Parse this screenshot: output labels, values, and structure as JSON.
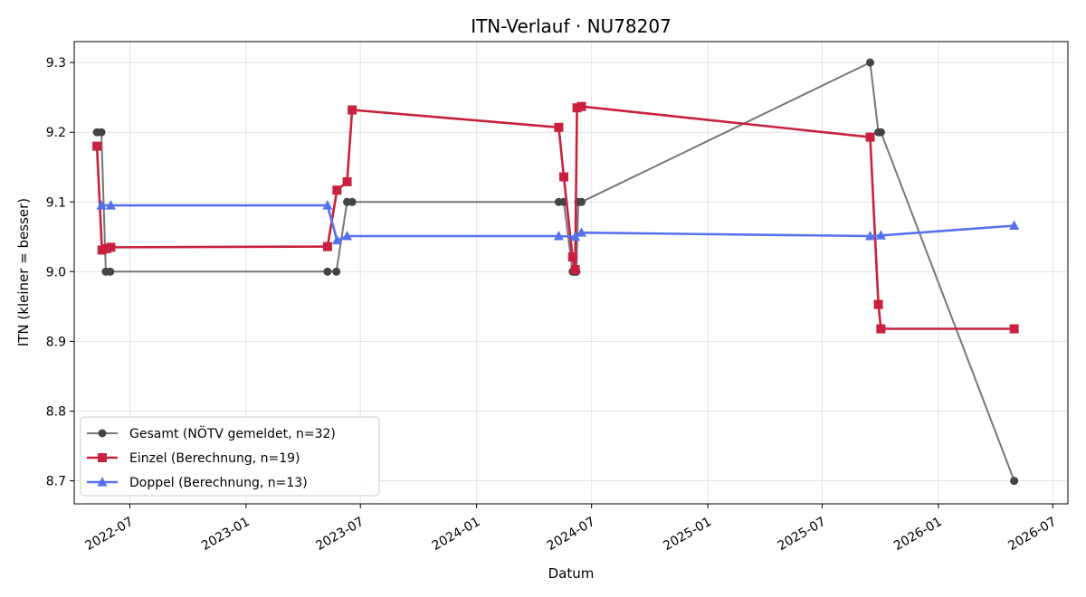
{
  "chart_data": {
    "type": "line",
    "title": "ITN-Verlauf · NU78207",
    "xlabel": "Datum",
    "ylabel": "ITN  (kleiner = besser)",
    "x_ticks": [
      "2022-07",
      "2023-01",
      "2023-07",
      "2024-01",
      "2024-07",
      "2025-01",
      "2025-07",
      "2026-01",
      "2026-07"
    ],
    "y_ticks": [
      "8.7",
      "8.8",
      "8.9",
      "9.0",
      "9.1",
      "9.2",
      "9.3"
    ],
    "xlim": [
      "2022-04-04",
      "2026-07-25"
    ],
    "ylim": [
      8.667,
      9.33
    ],
    "grid": true,
    "legend_position": "lower-left",
    "series": [
      {
        "name": "Gesamt (NÖTV gemeldet, n=32)",
        "color": "#777777",
        "marker_color": "#444444",
        "marker": "circle",
        "points": [
          [
            "2022-05-10",
            9.2
          ],
          [
            "2022-05-17",
            9.2
          ],
          [
            "2022-05-24",
            9.0
          ],
          [
            "2022-05-31",
            9.0
          ],
          [
            "2023-05-10",
            9.0
          ],
          [
            "2023-05-24",
            9.0
          ],
          [
            "2023-06-10",
            9.1
          ],
          [
            "2023-06-18",
            9.1
          ],
          [
            "2024-05-10",
            9.1
          ],
          [
            "2024-05-18",
            9.1
          ],
          [
            "2024-06-01",
            9.0
          ],
          [
            "2024-06-04",
            9.0
          ],
          [
            "2024-06-07",
            9.0
          ],
          [
            "2024-06-10",
            9.1
          ],
          [
            "2024-06-15",
            9.1
          ],
          [
            "2025-09-15",
            9.3
          ],
          [
            "2025-09-28",
            9.2
          ],
          [
            "2025-10-02",
            9.2
          ],
          [
            "2026-05-01",
            8.7
          ]
        ]
      },
      {
        "name": "Einzel (Berechnung, n=19)",
        "color": "#c8203e",
        "marker": "square",
        "points": [
          [
            "2022-05-10",
            9.18
          ],
          [
            "2022-05-18",
            9.031
          ],
          [
            "2022-05-25",
            9.033
          ],
          [
            "2022-06-01",
            9.035
          ],
          [
            "2023-05-10",
            9.036
          ],
          [
            "2023-05-25",
            9.117
          ],
          [
            "2023-06-10",
            9.129
          ],
          [
            "2023-06-18",
            9.232
          ],
          [
            "2024-05-10",
            9.207
          ],
          [
            "2024-05-18",
            9.136
          ],
          [
            "2024-06-01",
            9.021
          ],
          [
            "2024-06-05",
            9.003
          ],
          [
            "2024-06-08",
            9.235
          ],
          [
            "2024-06-15",
            9.237
          ],
          [
            "2025-09-15",
            9.193
          ],
          [
            "2025-09-28",
            8.953
          ],
          [
            "2025-10-02",
            8.918
          ],
          [
            "2026-05-01",
            8.918
          ]
        ]
      },
      {
        "name": "Doppel (Berechnung, n=13)",
        "color": "#5572ee",
        "marker": "triangle",
        "points": [
          [
            "2022-05-17",
            9.095
          ],
          [
            "2022-06-01",
            9.095
          ],
          [
            "2023-05-10",
            9.095
          ],
          [
            "2023-05-25",
            9.045
          ],
          [
            "2023-06-10",
            9.051
          ],
          [
            "2024-05-10",
            9.051
          ],
          [
            "2024-06-05",
            9.05
          ],
          [
            "2024-06-15",
            9.056
          ],
          [
            "2025-09-15",
            9.051
          ],
          [
            "2025-10-02",
            9.052
          ],
          [
            "2026-05-01",
            9.066
          ]
        ]
      }
    ]
  }
}
